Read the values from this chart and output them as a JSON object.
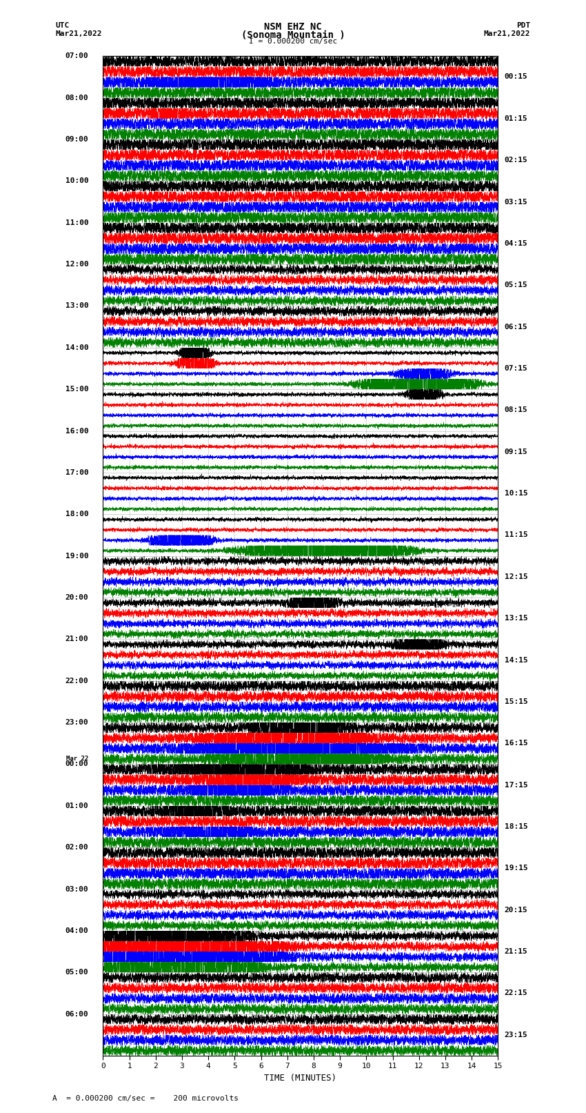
{
  "title_line1": "NSM EHZ NC",
  "title_line2": "(Sonoma Mountain )",
  "title_line3": "I = 0.000200 cm/sec",
  "left_header1": "UTC",
  "left_header2": "Mar21,2022",
  "right_header1": "PDT",
  "right_header2": "Mar21,2022",
  "left_labels": [
    "07:00",
    "08:00",
    "09:00",
    "10:00",
    "11:00",
    "12:00",
    "13:00",
    "14:00",
    "15:00",
    "16:00",
    "17:00",
    "18:00",
    "19:00",
    "20:00",
    "21:00",
    "22:00",
    "23:00",
    "Mar 22",
    "00:00",
    "01:00",
    "02:00",
    "03:00",
    "04:00",
    "05:00",
    "06:00"
  ],
  "right_labels": [
    "00:15",
    "01:15",
    "02:15",
    "03:15",
    "04:15",
    "05:15",
    "06:15",
    "07:15",
    "08:15",
    "09:15",
    "10:15",
    "11:15",
    "12:15",
    "13:15",
    "14:15",
    "15:15",
    "16:15",
    "17:15",
    "18:15",
    "19:15",
    "20:15",
    "21:15",
    "22:15",
    "23:15"
  ],
  "xlabel": "TIME (MINUTES)",
  "bottom_label": "A  = 0.000200 cm/sec =    200 microvolts",
  "trace_colors": [
    "black",
    "red",
    "blue",
    "green"
  ],
  "n_hours": 24,
  "n_traces_per_hour": 4,
  "x_min": 0,
  "x_max": 15,
  "x_ticks": [
    0,
    1,
    2,
    3,
    4,
    5,
    6,
    7,
    8,
    9,
    10,
    11,
    12,
    13,
    14,
    15
  ],
  "figsize": [
    8.5,
    16.13
  ],
  "dpi": 100,
  "bg_color": "white",
  "vline_color": "#888888",
  "vline_alpha": 0.5
}
